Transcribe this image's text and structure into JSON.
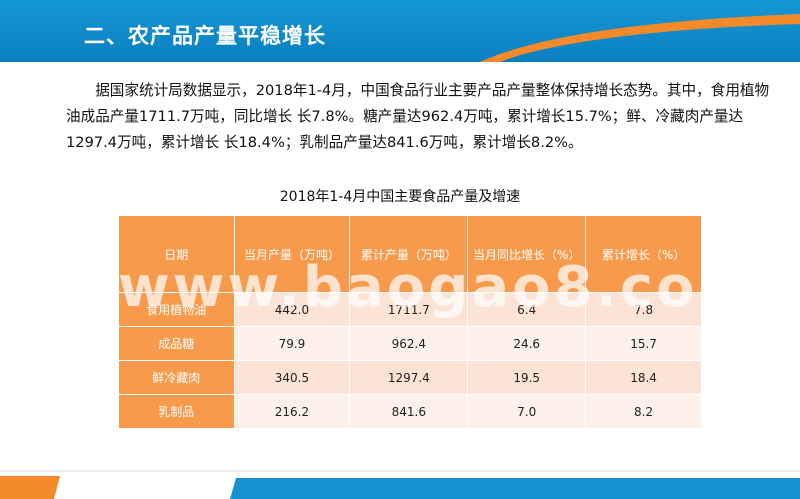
{
  "header": {
    "title": "二、农产品产量平稳增长"
  },
  "body": {
    "paragraph": "据国家统计局数据显示，2018年1-4月，中国食品行业主要产品产量整体保持增长态势。其中，食用植物油成品产量1711.7万吨，同比增长 长7.8%。糖产量达962.4万吨，累计增长15.7%；鲜、冷藏肉产量达1297.4万吨，累计增长 长18.4%；乳制品产量达841.6万吨，累计增长8.2%。"
  },
  "table": {
    "title": "2018年1-4月中国主要食品产量及增速",
    "headers": [
      "日期",
      "当月产量（万吨）",
      "累计产量（万吨）",
      "当月同比增长（%）",
      "累计增长（%）"
    ],
    "rows": [
      [
        "食用植物油",
        "442.0",
        "1711.7",
        "6.4",
        "7.8"
      ],
      [
        "成品糖",
        "79.9",
        "962.4",
        "24.6",
        "15.7"
      ],
      [
        "鲜冷藏肉",
        "340.5",
        "1297.4",
        "19.5",
        "18.4"
      ],
      [
        "乳制品",
        "216.2",
        "841.6",
        "7.0",
        "8.2"
      ]
    ]
  },
  "watermark": "www.baogao8.com",
  "colors": {
    "header_blue": "#1497d4",
    "accent_orange": "#f79a4c",
    "row_light": "#fce3d6",
    "row_lighter": "#fdf0e9"
  }
}
